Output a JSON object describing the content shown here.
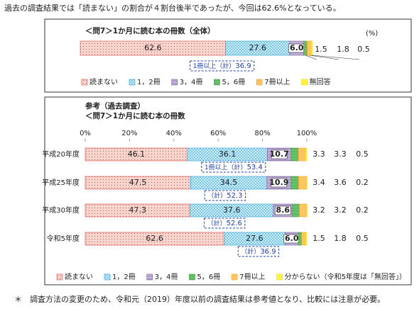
{
  "header": "過去の調査結果では「読まない」の割合が４割台後半であったが、今回は62.6%となっている。",
  "chart_data": [
    {
      "type": "bar",
      "orientation": "horizontal",
      "stacked": true,
      "title": "＜問7＞1か月に読む本の冊数（全体）",
      "unit": "(%)",
      "categories": [
        null
      ],
      "xlim": [
        0,
        100
      ],
      "legend": "bottom",
      "series": [
        {
          "name": "読まない",
          "color": "#e8473b",
          "fill": "#fbd3cd",
          "hatch": "dots",
          "values": [
            62.6
          ],
          "value_labels": [
            "62.6"
          ]
        },
        {
          "name": "1，2冊",
          "color": "#2a9fd6",
          "fill": "#cdeefa",
          "hatch": "cross",
          "values": [
            27.6
          ],
          "value_labels": [
            "27.6"
          ]
        },
        {
          "name": "3，4冊",
          "color": "#7b5ca6",
          "fill": "#c3b2da",
          "hatch": "lines",
          "values": [
            6.0
          ],
          "value_labels": [
            "6.0"
          ]
        },
        {
          "name": "5，6冊",
          "color": "#3c9a3c",
          "fill": "#6cc26c",
          "hatch": "lines",
          "values": [
            1.5
          ],
          "value_labels": [
            "1.5"
          ]
        },
        {
          "name": "7冊以上",
          "color": "#f5a623",
          "fill": "#fcc462",
          "hatch": "none",
          "values": [
            1.8
          ],
          "value_labels": [
            "1.8"
          ]
        },
        {
          "name": "無回答",
          "color": "#f2dc00",
          "fill": "#fff04a",
          "hatch": "none",
          "values": [
            0.5
          ],
          "value_labels": [
            "0.5"
          ]
        }
      ],
      "annotations": [
        {
          "label": "1冊以上（計）",
          "value": 36.9
        }
      ]
    },
    {
      "type": "bar",
      "orientation": "horizontal",
      "stacked": true,
      "title": "参考（過去調査）",
      "subtitle": "＜問7＞1か月に読む本の冊数",
      "categories": [
        "平成20年度",
        "平成25年度",
        "平成30年度",
        "令和5年度"
      ],
      "xlim": [
        0,
        100
      ],
      "xticks": [
        {
          "value": 0,
          "label": "0%"
        },
        {
          "value": 20,
          "label": "20%"
        },
        {
          "value": 40,
          "label": "40%"
        },
        {
          "value": 60,
          "label": "60%"
        },
        {
          "value": 80,
          "label": "80%"
        },
        {
          "value": 100,
          "label": "100%"
        }
      ],
      "legend": "bottom",
      "series": [
        {
          "name": "読まない",
          "color": "#e8473b",
          "fill": "#fbd3cd",
          "hatch": "dots",
          "values": [
            46.1,
            47.5,
            47.3,
            62.6
          ],
          "value_labels": [
            "46.1",
            "47.5",
            "47.3",
            "62.6"
          ]
        },
        {
          "name": "1，2冊",
          "color": "#2a9fd6",
          "fill": "#cdeefa",
          "hatch": "cross",
          "values": [
            36.1,
            34.5,
            37.6,
            27.6
          ],
          "value_labels": [
            "36.1",
            "34.5",
            "37.6",
            "27.6"
          ]
        },
        {
          "name": "3，4冊",
          "color": "#7b5ca6",
          "fill": "#c3b2da",
          "hatch": "lines",
          "values": [
            10.7,
            10.9,
            8.6,
            6.0
          ],
          "value_labels": [
            "10.7",
            "10.9",
            "8.6",
            "6.0"
          ]
        },
        {
          "name": "5，6冊",
          "color": "#3c9a3c",
          "fill": "#6cc26c",
          "hatch": "lines",
          "values": [
            3.3,
            3.4,
            3.2,
            1.5
          ],
          "value_labels": [
            "3.3",
            "3.4",
            "3.2",
            "1.5"
          ]
        },
        {
          "name": "7冊以上",
          "color": "#f5a623",
          "fill": "#fcc462",
          "hatch": "none",
          "values": [
            3.3,
            3.6,
            3.2,
            1.8
          ],
          "value_labels": [
            "3.3",
            "3.6",
            "3.2",
            "1.8"
          ]
        },
        {
          "name": "分からない（令和5年度は「無回答」）",
          "color": "#f2dc00",
          "fill": "#fff04a",
          "hatch": "none",
          "values": [
            0.5,
            0.2,
            0.2,
            0.5
          ],
          "value_labels": [
            "0.5",
            "0.2",
            "0.2",
            "0.5"
          ]
        }
      ],
      "annotations": [
        {
          "label": "1冊以上（計）",
          "value": 53.4
        },
        {
          "label": "（計）",
          "value": 52.3
        },
        {
          "label": "（計）",
          "value": 52.6
        },
        {
          "label": "（計）",
          "value": 36.9
        }
      ]
    }
  ],
  "footnote": "＊　調査方法の変更のため、令和元（2019）年度以前の調査結果は参考値となり、比較には注意が必要。"
}
